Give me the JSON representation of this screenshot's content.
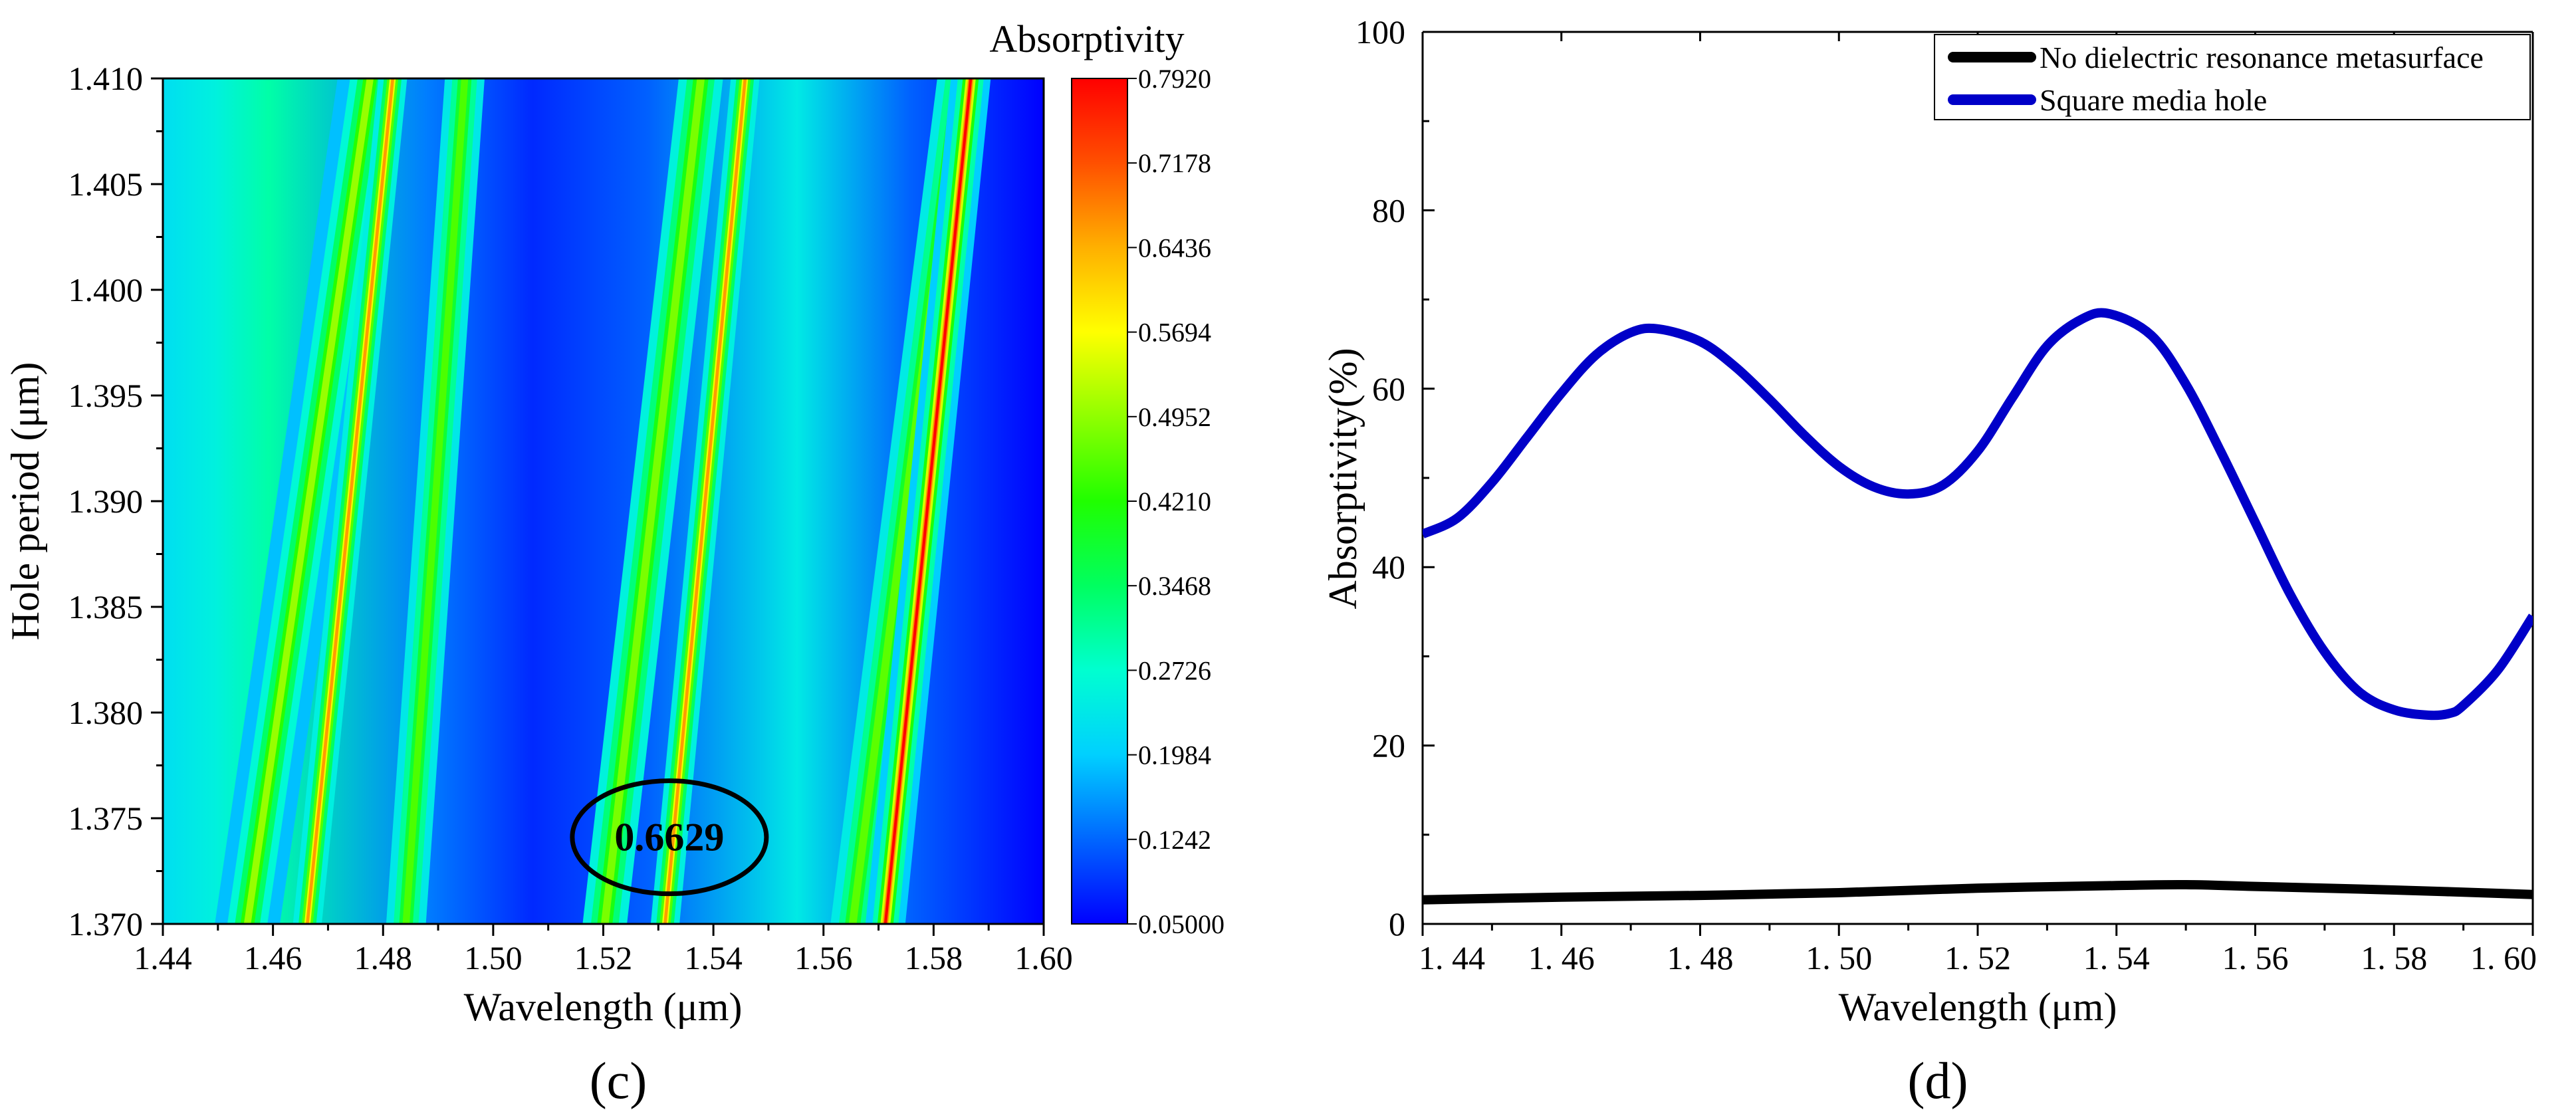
{
  "chart_data": [
    {
      "type": "heatmap",
      "panel_label": "(c)",
      "xlabel": "Wavelength (μm)",
      "ylabel": "Hole period (μm)",
      "xlim": [
        1.44,
        1.6
      ],
      "ylim": [
        1.37,
        1.41
      ],
      "x_ticks": [
        "1.44",
        "1.46",
        "1.48",
        "1.50",
        "1.52",
        "1.54",
        "1.56",
        "1.58",
        "1.60"
      ],
      "y_ticks": [
        "1.370",
        "1.375",
        "1.380",
        "1.385",
        "1.390",
        "1.395",
        "1.400",
        "1.405",
        "1.410"
      ],
      "colorbar": {
        "title": "Absorptivity",
        "min": 0.05,
        "max": 0.792,
        "ticks": [
          "0.05000",
          "0.1242",
          "0.1984",
          "0.2726",
          "0.3468",
          "0.4210",
          "0.4952",
          "0.5694",
          "0.6436",
          "0.7178",
          "0.7920"
        ],
        "colors": [
          "#0000ff",
          "#0066ff",
          "#00d0ff",
          "#00ffd0",
          "#00ff60",
          "#20ff00",
          "#90ff00",
          "#ffff00",
          "#ffb000",
          "#ff5000",
          "#ff0000"
        ]
      },
      "bands": [
        {
          "name": "band-1",
          "wavelength_at_1370": 1.466,
          "wavelength_at_1410": 1.482,
          "peak": 0.66,
          "width": 0.002
        },
        {
          "name": "band-2",
          "wavelength_at_1370": 1.455,
          "wavelength_at_1410": 1.478,
          "peak": 0.5,
          "width": 0.0045
        },
        {
          "name": "band-3",
          "wavelength_at_1370": 1.484,
          "wavelength_at_1410": 1.495,
          "peak": 0.45,
          "width": 0.0045
        },
        {
          "name": "band-4",
          "wavelength_at_1370": 1.531,
          "wavelength_at_1410": 1.546,
          "peak": 0.66,
          "width": 0.002
        },
        {
          "name": "band-5",
          "wavelength_at_1370": 1.52,
          "wavelength_at_1410": 1.538,
          "peak": 0.48,
          "width": 0.005
        },
        {
          "name": "band-6",
          "wavelength_at_1370": 1.565,
          "wavelength_at_1410": 1.585,
          "peak": 0.46,
          "width": 0.005
        },
        {
          "name": "band-7",
          "wavelength_at_1370": 1.571,
          "wavelength_at_1410": 1.587,
          "peak": 0.79,
          "width": 0.0018
        }
      ],
      "annotation": {
        "text": "0.6629",
        "wavelength": 1.532,
        "hole_period": 1.3741
      }
    },
    {
      "type": "line",
      "panel_label": "(d)",
      "xlabel": "Wavelength (μm)",
      "ylabel": "Absorptivity(%)",
      "xlim": [
        1.44,
        1.6
      ],
      "ylim": [
        0,
        100
      ],
      "x_ticks": [
        "1. 44",
        "1. 46",
        "1. 48",
        "1. 50",
        "1. 52",
        "1. 54",
        "1. 56",
        "1. 58",
        "1. 60"
      ],
      "y_ticks": [
        "0",
        "20",
        "40",
        "60",
        "80",
        "100"
      ],
      "legend_position": "top-right",
      "series": [
        {
          "name": "No dielectric resonance metasurface",
          "color": "#000000",
          "x": [
            1.44,
            1.46,
            1.48,
            1.5,
            1.52,
            1.54,
            1.55,
            1.56,
            1.58,
            1.6
          ],
          "y": [
            2.7,
            3.0,
            3.2,
            3.5,
            4.0,
            4.3,
            4.4,
            4.2,
            3.8,
            3.3
          ]
        },
        {
          "name": "Square media hole",
          "color": "#0000c8",
          "x": [
            1.44,
            1.445,
            1.45,
            1.455,
            1.46,
            1.465,
            1.47,
            1.474,
            1.48,
            1.485,
            1.49,
            1.495,
            1.5,
            1.505,
            1.51,
            1.515,
            1.52,
            1.525,
            1.53,
            1.535,
            1.539,
            1.545,
            1.55,
            1.555,
            1.56,
            1.565,
            1.57,
            1.575,
            1.58,
            1.585,
            1.588,
            1.59,
            1.595,
            1.6
          ],
          "y": [
            43.7,
            45.5,
            49.5,
            54.5,
            59.5,
            63.8,
            66.3,
            66.7,
            65.3,
            62.5,
            58.8,
            54.8,
            51.3,
            49.0,
            48.2,
            49.2,
            53.0,
            59.0,
            64.8,
            67.8,
            68.4,
            66.0,
            60.5,
            53.0,
            45.0,
            37.0,
            30.5,
            26.0,
            24.0,
            23.4,
            23.6,
            24.5,
            28.5,
            34.5
          ]
        }
      ]
    }
  ]
}
